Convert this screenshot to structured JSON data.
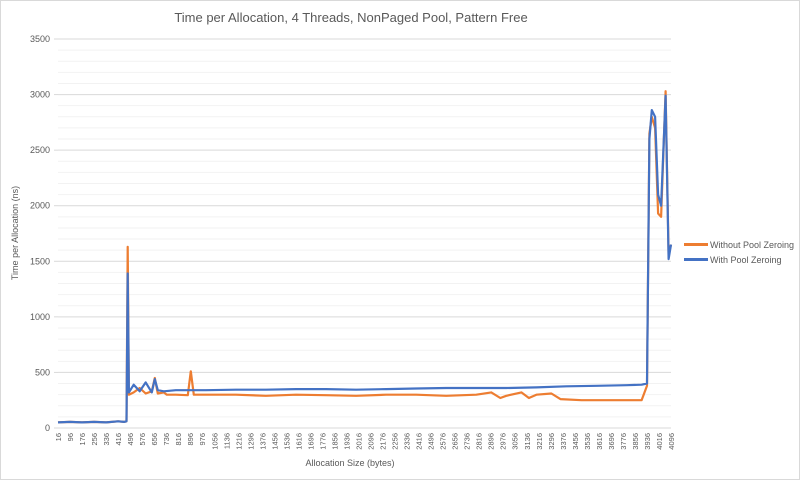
{
  "chart_data": {
    "type": "line",
    "title": "Time per Allocation, 4 Threads, NonPaged Pool, Pattern Free",
    "xlabel": "Allocation Size (bytes)",
    "ylabel": "Time per Allocation (ns)",
    "ylim": [
      0,
      3500
    ],
    "yticks": [
      0,
      500,
      1000,
      1500,
      2000,
      2500,
      3000,
      3500
    ],
    "grid": "major every 500, minor every 100",
    "legend_position": "right",
    "x_tick_labels": [
      "16",
      "96",
      "176",
      "256",
      "336",
      "416",
      "496",
      "576",
      "656",
      "736",
      "816",
      "896",
      "976",
      "1056",
      "1136",
      "1216",
      "1296",
      "1376",
      "1456",
      "1536",
      "1616",
      "1696",
      "1776",
      "1856",
      "1936",
      "2016",
      "2096",
      "2176",
      "2256",
      "2336",
      "2416",
      "2496",
      "2576",
      "2656",
      "2736",
      "2816",
      "2896",
      "2976",
      "3056",
      "3136",
      "3216",
      "3296",
      "3376",
      "3456",
      "3536",
      "3616",
      "3696",
      "3776",
      "3856",
      "3936",
      "4016",
      "4096"
    ],
    "series": [
      {
        "name": "Without Pool Zeroing",
        "color": "#ED7D31",
        "points": [
          [
            16,
            50
          ],
          [
            96,
            55
          ],
          [
            176,
            50
          ],
          [
            256,
            55
          ],
          [
            336,
            50
          ],
          [
            416,
            60
          ],
          [
            456,
            55
          ],
          [
            472,
            60
          ],
          [
            480,
            1630
          ],
          [
            488,
            300
          ],
          [
            520,
            320
          ],
          [
            560,
            360
          ],
          [
            600,
            310
          ],
          [
            640,
            330
          ],
          [
            660,
            450
          ],
          [
            680,
            310
          ],
          [
            720,
            320
          ],
          [
            740,
            300
          ],
          [
            800,
            300
          ],
          [
            880,
            295
          ],
          [
            900,
            510
          ],
          [
            920,
            300
          ],
          [
            1000,
            300
          ],
          [
            1200,
            300
          ],
          [
            1400,
            290
          ],
          [
            1600,
            300
          ],
          [
            1800,
            295
          ],
          [
            2000,
            290
          ],
          [
            2200,
            300
          ],
          [
            2400,
            300
          ],
          [
            2600,
            290
          ],
          [
            2800,
            300
          ],
          [
            2900,
            320
          ],
          [
            2960,
            270
          ],
          [
            3000,
            290
          ],
          [
            3100,
            320
          ],
          [
            3150,
            270
          ],
          [
            3200,
            300
          ],
          [
            3300,
            310
          ],
          [
            3360,
            260
          ],
          [
            3500,
            250
          ],
          [
            3700,
            250
          ],
          [
            3900,
            250
          ],
          [
            3936,
            380
          ],
          [
            3952,
            2650
          ],
          [
            3968,
            2800
          ],
          [
            3990,
            2700
          ],
          [
            4010,
            1930
          ],
          [
            4030,
            1900
          ],
          [
            4060,
            3030
          ],
          [
            4080,
            1560
          ],
          [
            4096,
            1650
          ]
        ]
      },
      {
        "name": "With Pool Zeroing",
        "color": "#4472C4",
        "points": [
          [
            16,
            50
          ],
          [
            96,
            55
          ],
          [
            176,
            50
          ],
          [
            256,
            55
          ],
          [
            336,
            50
          ],
          [
            416,
            60
          ],
          [
            456,
            55
          ],
          [
            472,
            60
          ],
          [
            480,
            1390
          ],
          [
            488,
            320
          ],
          [
            520,
            390
          ],
          [
            560,
            330
          ],
          [
            600,
            410
          ],
          [
            640,
            320
          ],
          [
            660,
            440
          ],
          [
            680,
            340
          ],
          [
            720,
            330
          ],
          [
            800,
            340
          ],
          [
            1000,
            340
          ],
          [
            1200,
            345
          ],
          [
            1400,
            345
          ],
          [
            1600,
            350
          ],
          [
            1800,
            350
          ],
          [
            2000,
            345
          ],
          [
            2200,
            350
          ],
          [
            2400,
            355
          ],
          [
            2600,
            360
          ],
          [
            2800,
            360
          ],
          [
            3000,
            360
          ],
          [
            3200,
            365
          ],
          [
            3400,
            375
          ],
          [
            3600,
            380
          ],
          [
            3800,
            385
          ],
          [
            3900,
            390
          ],
          [
            3936,
            400
          ],
          [
            3952,
            2600
          ],
          [
            3968,
            2860
          ],
          [
            3990,
            2800
          ],
          [
            4010,
            2100
          ],
          [
            4030,
            2000
          ],
          [
            4060,
            2990
          ],
          [
            4080,
            1520
          ],
          [
            4096,
            1650
          ]
        ]
      }
    ]
  },
  "legend": {
    "items": [
      {
        "label": "Without Pool Zeroing",
        "color": "#ED7D31"
      },
      {
        "label": "With Pool Zeroing",
        "color": "#4472C4"
      }
    ]
  }
}
